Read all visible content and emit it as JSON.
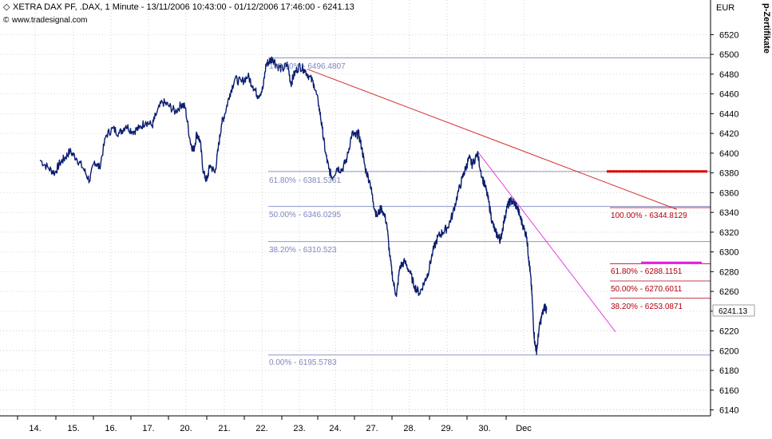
{
  "header": {
    "title": "XETRA DAX PF, .DAX, 1 Minute - 13/11/2006 10:43:00 - 01/12/2006 17:46:00 - 6241.13",
    "source": "www.tradesignal.com",
    "currency": "EUR",
    "side_label": "p-Zertifikate"
  },
  "chart_data": {
    "type": "line",
    "title": "XETRA DAX PF, .DAX, 1 Minute - 13/11/2006 10:43:00 - 01/12/2006 17:46:00 - 6241.13",
    "ylabel": "EUR",
    "ylim": [
      6136,
      6550
    ],
    "y_ticks": [
      6140,
      6160,
      6180,
      6200,
      6220,
      6240,
      6260,
      6280,
      6300,
      6320,
      6340,
      6360,
      6380,
      6400,
      6420,
      6440,
      6460,
      6480,
      6500,
      6520
    ],
    "x_labels": [
      "14.",
      "15.",
      "16.",
      "17.",
      "20.",
      "21.",
      "22.",
      "23.",
      "24.",
      "27.",
      "28.",
      "29.",
      "30.",
      "Dec"
    ],
    "x_range": [
      0,
      19
    ],
    "last_value": 6241.13,
    "last_label": "6241.13",
    "series": [
      {
        "color": "#0b1d6e",
        "points": [
          [
            0.0,
            6393
          ],
          [
            0.25,
            6385
          ],
          [
            0.45,
            6380
          ],
          [
            0.6,
            6390
          ],
          [
            0.75,
            6395
          ],
          [
            0.9,
            6402
          ],
          [
            1.1,
            6395
          ],
          [
            1.3,
            6385
          ],
          [
            1.5,
            6372
          ],
          [
            1.65,
            6392
          ],
          [
            1.8,
            6385
          ],
          [
            2.0,
            6418
          ],
          [
            2.2,
            6425
          ],
          [
            2.4,
            6420
          ],
          [
            2.6,
            6428
          ],
          [
            2.8,
            6422
          ],
          [
            3.0,
            6425
          ],
          [
            3.2,
            6432
          ],
          [
            3.4,
            6428
          ],
          [
            3.5,
            6438
          ],
          [
            3.7,
            6452
          ],
          [
            3.9,
            6448
          ],
          [
            4.1,
            6442
          ],
          [
            4.3,
            6450
          ],
          [
            4.4,
            6446
          ],
          [
            4.55,
            6412
          ],
          [
            4.65,
            6402
          ],
          [
            4.75,
            6420
          ],
          [
            4.85,
            6412
          ],
          [
            4.95,
            6380
          ],
          [
            5.05,
            6372
          ],
          [
            5.15,
            6388
          ],
          [
            5.3,
            6380
          ],
          [
            5.4,
            6405
          ],
          [
            5.5,
            6430
          ],
          [
            5.6,
            6440
          ],
          [
            5.75,
            6460
          ],
          [
            5.9,
            6475
          ],
          [
            6.1,
            6472
          ],
          [
            6.3,
            6478
          ],
          [
            6.45,
            6468
          ],
          [
            6.6,
            6458
          ],
          [
            6.75,
            6465
          ],
          [
            6.85,
            6490
          ],
          [
            6.95,
            6493
          ],
          [
            7.05,
            6496
          ],
          [
            7.2,
            6488
          ],
          [
            7.35,
            6485
          ],
          [
            7.5,
            6490
          ],
          [
            7.6,
            6470
          ],
          [
            7.7,
            6480
          ],
          [
            7.85,
            6488
          ],
          [
            8.0,
            6485
          ],
          [
            8.15,
            6478
          ],
          [
            8.3,
            6470
          ],
          [
            8.45,
            6448
          ],
          [
            8.55,
            6425
          ],
          [
            8.65,
            6400
          ],
          [
            8.75,
            6384
          ],
          [
            8.85,
            6375
          ],
          [
            9.0,
            6385
          ],
          [
            9.15,
            6383
          ],
          [
            9.3,
            6395
          ],
          [
            9.45,
            6420
          ],
          [
            9.55,
            6417
          ],
          [
            9.65,
            6420
          ],
          [
            9.75,
            6405
          ],
          [
            9.85,
            6385
          ],
          [
            10.0,
            6370
          ],
          [
            10.1,
            6350
          ],
          [
            10.2,
            6336
          ],
          [
            10.35,
            6345
          ],
          [
            10.5,
            6330
          ],
          [
            10.6,
            6295
          ],
          [
            10.7,
            6270
          ],
          [
            10.8,
            6255
          ],
          [
            10.9,
            6285
          ],
          [
            11.05,
            6290
          ],
          [
            11.2,
            6280
          ],
          [
            11.35,
            6265
          ],
          [
            11.5,
            6258
          ],
          [
            11.65,
            6270
          ],
          [
            11.75,
            6278
          ],
          [
            11.9,
            6300
          ],
          [
            12.05,
            6315
          ],
          [
            12.2,
            6320
          ],
          [
            12.35,
            6325
          ],
          [
            12.5,
            6338
          ],
          [
            12.65,
            6358
          ],
          [
            12.8,
            6375
          ],
          [
            12.9,
            6385
          ],
          [
            13.0,
            6395
          ],
          [
            13.1,
            6388
          ],
          [
            13.25,
            6400
          ],
          [
            13.4,
            6375
          ],
          [
            13.5,
            6365
          ],
          [
            13.6,
            6350
          ],
          [
            13.7,
            6330
          ],
          [
            13.8,
            6320
          ],
          [
            13.9,
            6315
          ],
          [
            13.95,
            6312
          ],
          [
            14.05,
            6330
          ],
          [
            14.15,
            6345
          ],
          [
            14.25,
            6352
          ],
          [
            14.35,
            6350
          ],
          [
            14.45,
            6346
          ],
          [
            14.55,
            6335
          ],
          [
            14.65,
            6325
          ],
          [
            14.75,
            6315
          ],
          [
            14.8,
            6295
          ],
          [
            14.85,
            6280
          ],
          [
            14.9,
            6260
          ],
          [
            14.95,
            6225
          ],
          [
            15.0,
            6205
          ],
          [
            15.05,
            6200
          ],
          [
            15.12,
            6222
          ],
          [
            15.2,
            6235
          ],
          [
            15.3,
            6245
          ],
          [
            15.35,
            6241
          ]
        ]
      }
    ],
    "annotations": {
      "left_fib": [
        "100.00% - 6496.4807",
        "61.80% - 6381.5361",
        "50.00% - 6346.0295",
        "38.20% - 6310.523",
        "0.00% - 6195.5783"
      ],
      "right_fib": [
        "100.00% - 6344.8129",
        "61.80% - 6288.1151",
        "50.00% - 6270.6011",
        "38.20% - 6253.0871"
      ]
    }
  }
}
